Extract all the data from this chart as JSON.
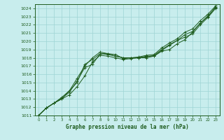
{
  "title": "Graphe pression niveau de la mer (hPa)",
  "bg_color": "#c8eded",
  "grid_color": "#9ed4d4",
  "line_color": "#1e5c1e",
  "xlim": [
    -0.5,
    23.5
  ],
  "ylim": [
    1011,
    1024.5
  ],
  "yticks": [
    1011,
    1012,
    1013,
    1014,
    1015,
    1016,
    1017,
    1018,
    1019,
    1020,
    1021,
    1022,
    1023,
    1024
  ],
  "xticks": [
    0,
    1,
    2,
    3,
    4,
    5,
    6,
    7,
    8,
    9,
    10,
    11,
    12,
    13,
    14,
    15,
    16,
    17,
    18,
    19,
    20,
    21,
    22,
    23
  ],
  "series": [
    [
      1011.0,
      1011.9,
      1012.5,
      1013.1,
      1013.8,
      1015.2,
      1016.8,
      1017.2,
      1018.5,
      1018.5,
      1018.4,
      1017.9,
      1018.0,
      1018.0,
      1018.2,
      1018.2,
      1018.8,
      1019.0,
      1019.7,
      1020.2,
      1021.1,
      1022.2,
      1023.0,
      1024.2
    ],
    [
      1011.0,
      1011.9,
      1012.5,
      1013.0,
      1013.5,
      1014.5,
      1015.8,
      1017.5,
      1018.3,
      1018.2,
      1018.0,
      1017.8,
      1017.9,
      1018.0,
      1018.0,
      1018.2,
      1018.9,
      1019.5,
      1020.1,
      1020.5,
      1020.9,
      1022.0,
      1022.9,
      1024.0
    ],
    [
      1011.0,
      1011.9,
      1012.5,
      1013.2,
      1014.0,
      1015.5,
      1017.0,
      1018.0,
      1018.7,
      1018.5,
      1018.2,
      1018.0,
      1018.0,
      1018.1,
      1018.3,
      1018.4,
      1019.2,
      1019.8,
      1020.3,
      1021.1,
      1021.5,
      1022.5,
      1023.3,
      1024.3
    ],
    [
      1011.0,
      1011.9,
      1012.5,
      1013.0,
      1014.0,
      1015.0,
      1017.2,
      1017.8,
      1018.5,
      1018.4,
      1018.2,
      1018.0,
      1018.0,
      1018.0,
      1018.1,
      1018.3,
      1019.0,
      1019.6,
      1020.1,
      1020.8,
      1021.2,
      1022.2,
      1023.1,
      1024.1
    ]
  ]
}
